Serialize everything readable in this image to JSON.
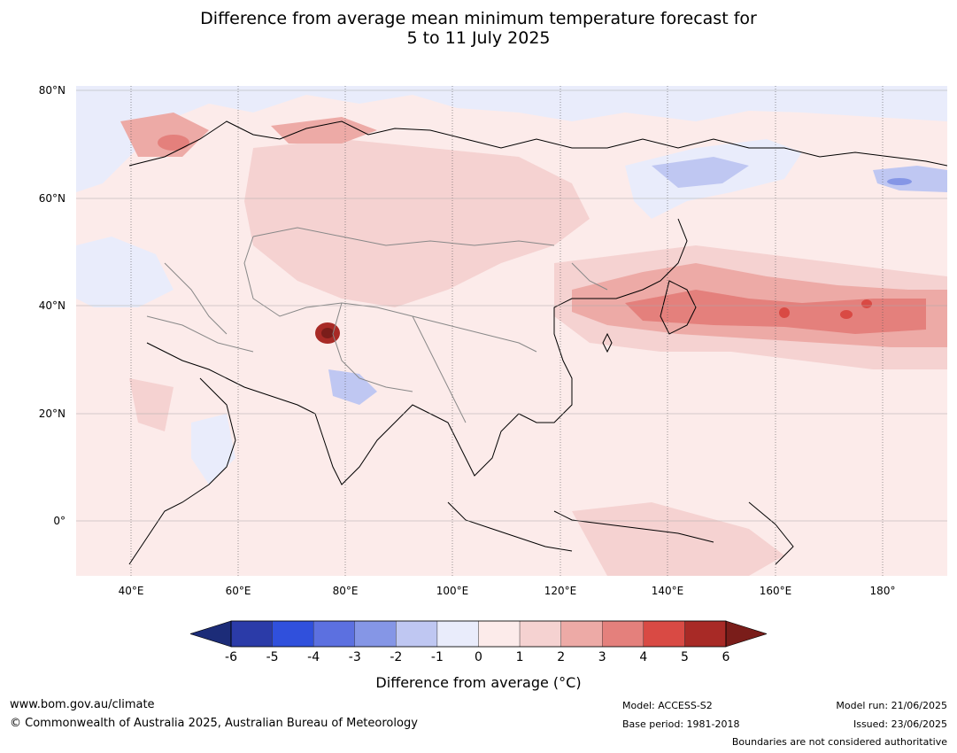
{
  "title_line1": "Difference from average mean minimum temperature forecast for",
  "title_line2": "5 to 11 July 2025",
  "lat_labels": [
    "80°N",
    "60°N",
    "40°N",
    "20°N",
    "0°"
  ],
  "lon_labels": [
    "40°E",
    "60°E",
    "80°E",
    "100°E",
    "120°E",
    "140°E",
    "160°E",
    "180°"
  ],
  "colorbar": {
    "ticks": [
      "-6",
      "-5",
      "-4",
      "-3",
      "-2",
      "-1",
      "0",
      "1",
      "2",
      "3",
      "4",
      "5",
      "6"
    ],
    "colors": [
      "#2b3ba8",
      "#3050dc",
      "#5c70e0",
      "#8596e6",
      "#bfc7f2",
      "#e9ecfb",
      "#fcebea",
      "#f5d2d1",
      "#edaaa6",
      "#e4807c",
      "#d94a44",
      "#a82a26"
    ],
    "below_color": "#1c2c78",
    "above_color": "#7a1d1a",
    "title": "Difference from average (°C)"
  },
  "footer": {
    "url": "www.bom.gov.au/climate",
    "copyright": "© Commonwealth of Australia 2025, Australian Bureau of Meteorology",
    "model": "Model: ACCESS-S2",
    "base_period": "Base period: 1981-2018",
    "model_run": "Model run: 21/06/2025",
    "issued": "Issued: 23/06/2025",
    "disclaimer": "Boundaries are not considered authoritative"
  }
}
